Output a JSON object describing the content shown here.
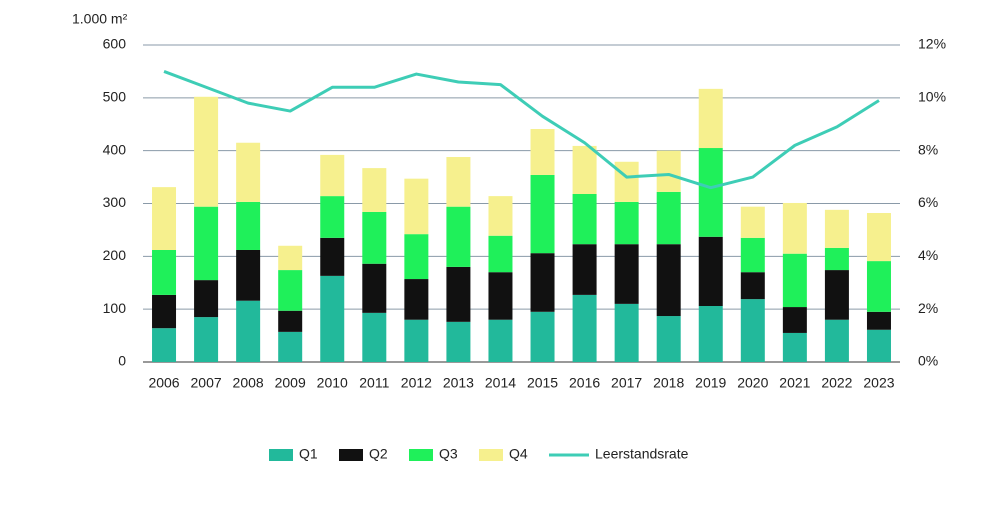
{
  "chart_data": {
    "type": "bar",
    "stacked": true,
    "y_label": "1.000 m²",
    "categories": [
      "2006",
      "2007",
      "2008",
      "2009",
      "2010",
      "2011",
      "2012",
      "2013",
      "2014",
      "2015",
      "2016",
      "2017",
      "2018",
      "2019",
      "2020",
      "2021",
      "2022",
      "2023"
    ],
    "series": [
      {
        "name": "Q1",
        "color": "#22b99b",
        "values": [
          64,
          85,
          116,
          57,
          163,
          93,
          80,
          76,
          80,
          95,
          127,
          110,
          87,
          106,
          119,
          55,
          80,
          61
        ]
      },
      {
        "name": "Q2",
        "color": "#111111",
        "values": [
          63,
          70,
          96,
          40,
          72,
          93,
          77,
          104,
          90,
          111,
          96,
          113,
          136,
          131,
          51,
          49,
          94,
          34
        ]
      },
      {
        "name": "Q3",
        "color": "#1ff05a",
        "values": [
          85,
          139,
          91,
          77,
          79,
          98,
          85,
          114,
          69,
          148,
          95,
          80,
          99,
          168,
          65,
          101,
          42,
          96
        ]
      },
      {
        "name": "Q4",
        "color": "#f6f08e",
        "values": [
          119,
          208,
          112,
          46,
          78,
          83,
          105,
          94,
          75,
          87,
          91,
          76,
          78,
          112,
          59,
          96,
          72,
          91
        ]
      },
      {
        "name": "Leerstandsrate",
        "type": "line",
        "axis": "y2",
        "color": "#3ecdb6",
        "values": [
          11.0,
          10.4,
          9.8,
          9.5,
          10.4,
          10.4,
          10.9,
          10.6,
          10.5,
          9.3,
          8.3,
          7.0,
          7.1,
          6.6,
          7.0,
          8.2,
          8.9,
          9.9
        ]
      }
    ],
    "ylim": [
      0,
      600
    ],
    "yticks": [
      0,
      100,
      200,
      300,
      400,
      500,
      600
    ],
    "y2lim": [
      0,
      12
    ],
    "y2ticks": [
      {
        "value": 0,
        "label": "0%"
      },
      {
        "value": 2,
        "label": "2%"
      },
      {
        "value": 4,
        "label": "4%"
      },
      {
        "value": 6,
        "label": "6%"
      },
      {
        "value": 8,
        "label": "8%"
      },
      {
        "value": 10,
        "label": "10%"
      },
      {
        "value": 12,
        "label": "12%"
      }
    ],
    "grid": true,
    "legend": "bottom"
  }
}
